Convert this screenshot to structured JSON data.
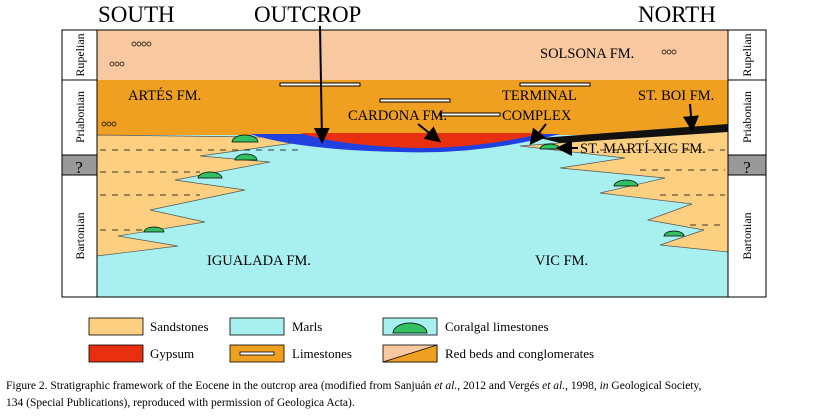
{
  "header": {
    "south": "SOUTH",
    "outcrop": "OUTCROP",
    "north": "NORTH"
  },
  "stages": {
    "left": [
      "Rupelian",
      "Priabonian",
      "?",
      "Bartonian"
    ],
    "right": [
      "Rupelian",
      "Priabonian",
      "?",
      "Bartonian"
    ]
  },
  "formations": {
    "solsona": "SOLSONA FM.",
    "artes": "ARTÉS FM.",
    "cardona": "CARDONA FM.",
    "terminal_complex": [
      "TERMINAL",
      "COMPLEX"
    ],
    "st_boi": "ST. BOI FM.",
    "st_marti_xic": "ST. MARTÍ XIC FM.",
    "igualada": "IGUALADA FM.",
    "vic": "VIC FM."
  },
  "legend": [
    "Sandstones",
    "Marls",
    "Coralgal limestones",
    "Gypsum",
    "Limestones",
    "Red beds and conglomerates"
  ],
  "caption": {
    "line1": [
      "Figure 2. Stratigraphic framework of the Eocene in the outcrop area (modified from Sanjuán ",
      "et al.",
      ", 2012 and Vergés ",
      "et al.",
      ", 1998, ",
      "in",
      " Geological Society,"
    ],
    "line2": "134 (Special Publications), reproduced with permission of Geologica Acta)."
  }
}
